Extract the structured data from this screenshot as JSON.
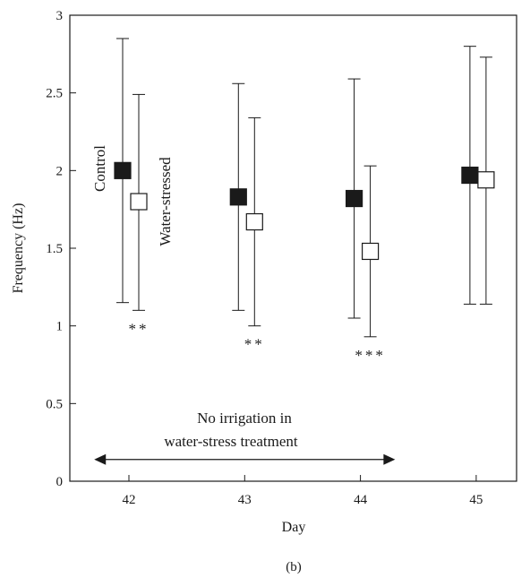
{
  "chart_data": {
    "type": "scatter",
    "xlabel": "Day",
    "ylabel": "Frequency (Hz)",
    "ylim": [
      0,
      3
    ],
    "yticks": [
      0,
      0.5,
      1,
      1.5,
      2,
      2.5,
      3
    ],
    "categories": [
      "42",
      "43",
      "44",
      "45"
    ],
    "series": [
      {
        "name": "Control",
        "marker": "filled-square",
        "color": "#1a1a1a",
        "values": [
          2.0,
          1.83,
          1.82,
          1.97
        ],
        "err_low": [
          1.15,
          1.1,
          1.05,
          1.14
        ],
        "err_high": [
          2.85,
          2.56,
          2.59,
          2.8
        ]
      },
      {
        "name": "Water-stressed",
        "marker": "open-square",
        "color": "#1a1a1a",
        "values": [
          1.8,
          1.67,
          1.48,
          1.94
        ],
        "err_low": [
          1.1,
          1.0,
          0.93,
          1.14
        ],
        "err_high": [
          2.49,
          2.34,
          2.03,
          2.73
        ]
      }
    ],
    "significance": [
      "**",
      "**",
      "***",
      ""
    ],
    "annotation": {
      "line1": "No irrigation in",
      "line2": "water-stress treatment",
      "y": 0.14,
      "x_start_day": 41.7,
      "x_end_day": 44.3
    },
    "panel_label": "(b)"
  }
}
